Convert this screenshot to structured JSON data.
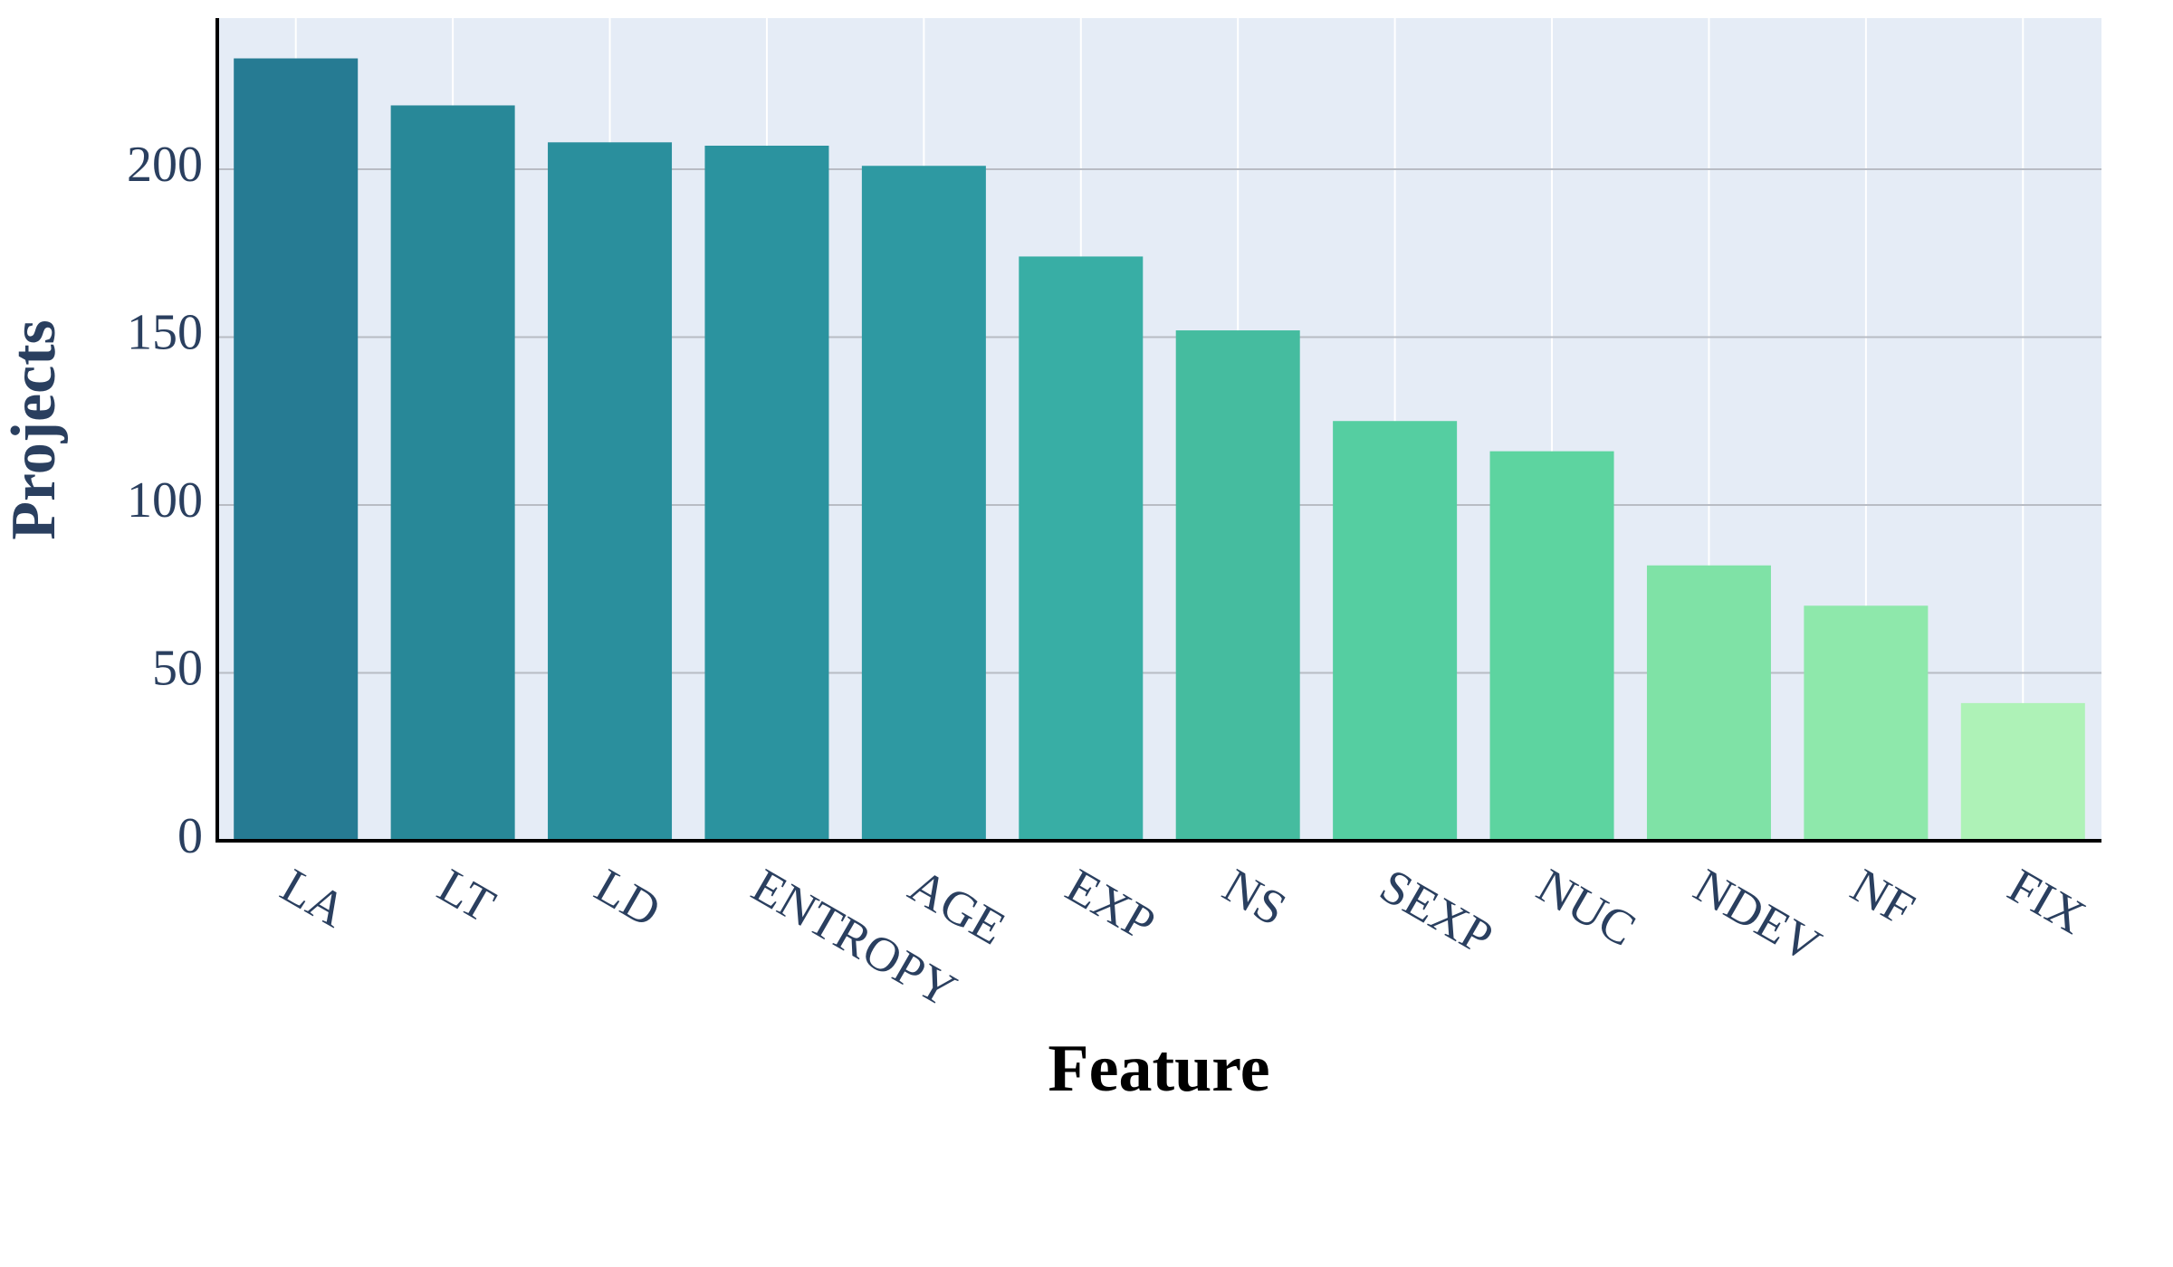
{
  "chart_data": {
    "type": "bar",
    "x_label": "Feature",
    "y_label": "Projects",
    "categories": [
      "LA",
      "LT",
      "LD",
      "ENTROPY",
      "AGE",
      "EXP",
      "NS",
      "SEXP",
      "NUC",
      "NDEV",
      "NF",
      "FIX"
    ],
    "values": [
      233,
      219,
      208,
      207,
      201,
      174,
      152,
      125,
      116,
      82,
      70,
      41
    ],
    "colors": [
      "#267b93",
      "#288898",
      "#2a8f9d",
      "#2b939f",
      "#2e99a2",
      "#38aea5",
      "#45bc9f",
      "#55cea1",
      "#5dd4a0",
      "#7fe2a6",
      "#8ee8ab",
      "#aef2b7"
    ],
    "ylim": [
      0,
      245
    ],
    "yticks": [
      0,
      50,
      100,
      150,
      200
    ],
    "grid": true
  }
}
